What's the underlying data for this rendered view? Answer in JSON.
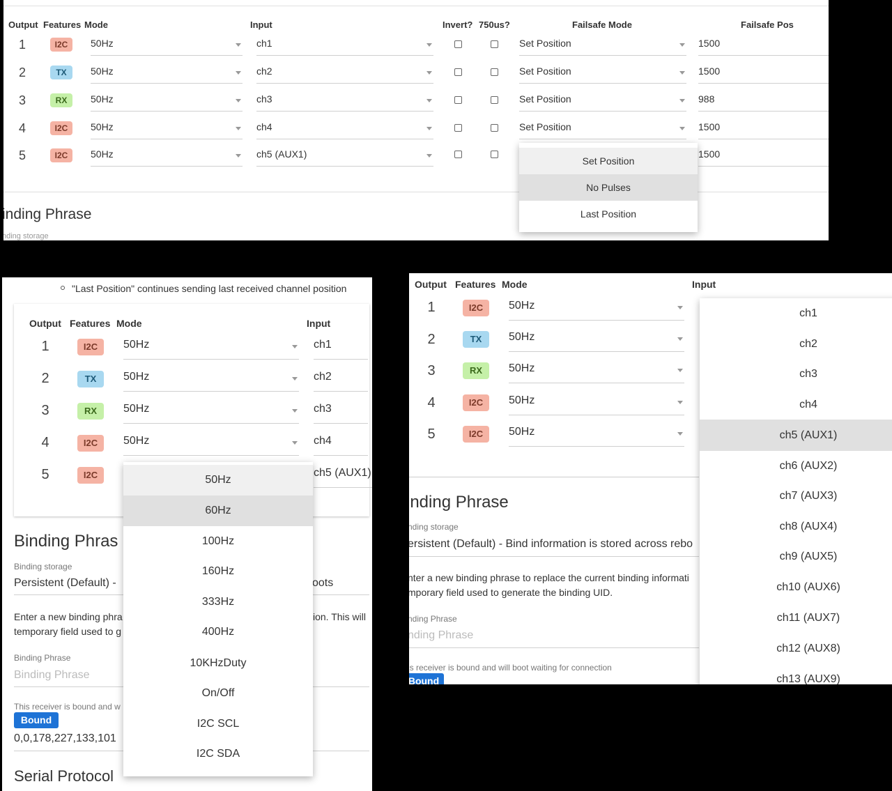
{
  "headers": {
    "output": "Output",
    "features": "Features",
    "mode": "Mode",
    "input": "Input",
    "invert": "Invert?",
    "us750": "750us?",
    "failsafe_mode": "Failsafe Mode",
    "failsafe_pos": "Failsafe Pos"
  },
  "rows": [
    {
      "num": "1",
      "feature": "I2C",
      "mode": "50Hz",
      "input": "ch1",
      "failsafe_mode": "Set Position",
      "failsafe_pos": "1500"
    },
    {
      "num": "2",
      "feature": "TX",
      "mode": "50Hz",
      "input": "ch2",
      "failsafe_mode": "Set Position",
      "failsafe_pos": "1500"
    },
    {
      "num": "3",
      "feature": "RX",
      "mode": "50Hz",
      "input": "ch3",
      "failsafe_mode": "Set Position",
      "failsafe_pos": "988"
    },
    {
      "num": "4",
      "feature": "I2C",
      "mode": "50Hz",
      "input": "ch4",
      "failsafe_mode": "Set Position",
      "failsafe_pos": "1500"
    },
    {
      "num": "5",
      "feature": "I2C",
      "mode": "50Hz",
      "input": "ch5 (AUX1)",
      "failsafe_mode": "",
      "failsafe_pos": "1500"
    }
  ],
  "failsafe_menu": [
    "Set Position",
    "No Pulses",
    "Last Position"
  ],
  "mode_menu": [
    "50Hz",
    "60Hz",
    "100Hz",
    "160Hz",
    "333Hz",
    "400Hz",
    "10KHzDuty",
    "On/Off",
    "I2C SCL",
    "I2C SDA"
  ],
  "input_menu": [
    "ch1",
    "ch2",
    "ch3",
    "ch4",
    "ch5 (AUX1)",
    "ch6 (AUX2)",
    "ch7 (AUX3)",
    "ch8 (AUX4)",
    "ch9 (AUX5)",
    "ch10 (AUX6)",
    "ch11 (AUX7)",
    "ch12 (AUX8)",
    "ch13 (AUX9)"
  ],
  "panel1": {
    "binding_title": "inding Phrase",
    "binding_storage": "nding storage"
  },
  "panel2": {
    "note": "\"Last Position\" continues sending last received channel position",
    "binding_title": "Binding Phras",
    "binding_storage_label": "Binding storage",
    "binding_storage_value_left": "Persistent (Default) -",
    "binding_storage_value_right": "oots",
    "desc_left_1": "Enter a new binding phra",
    "desc_left_2": "temporary field used to g",
    "desc_right_1": "ion. This will",
    "phrase_label": "Binding Phrase",
    "phrase_placeholder": "Binding Phrase",
    "bound_text": "This receiver is bound and w",
    "bound_badge": "Bound",
    "uid": "0,0,178,227,133,101",
    "serial_title": "Serial Protocol"
  },
  "panel3": {
    "binding_title": "inding Phrase",
    "binding_storage_label": "nding storage",
    "binding_storage_value": "ersistent (Default) - Bind information is stored across rebo",
    "desc_1": "nter a new binding phrase to replace the current binding informati",
    "desc_2": "mporary field used to generate the binding UID.",
    "phrase_label": "nding Phrase",
    "phrase_placeholder": "nding Phrase",
    "bound_text": "is receiver is bound and will boot waiting for connection",
    "bound_badge": "Bound"
  }
}
